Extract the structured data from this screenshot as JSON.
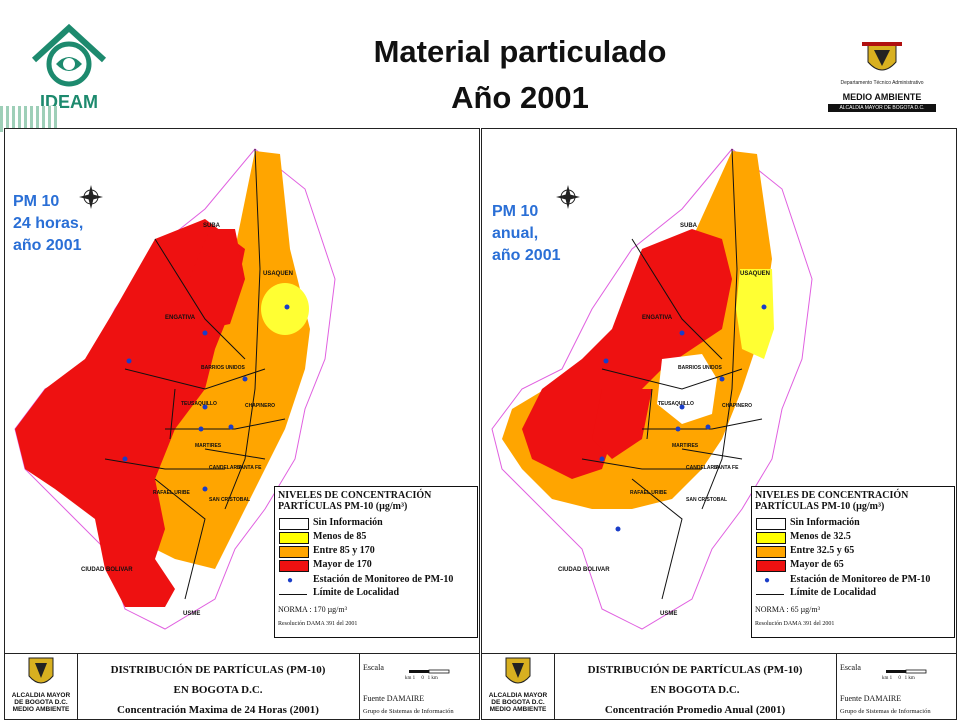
{
  "header": {
    "title_line1": "Material particulado",
    "title_line2": "Año 2001",
    "ideam_logo_text": "IDEAM",
    "ma_logo": {
      "department": "Departamento Técnico Administrativo",
      "name": "MEDIO AMBIENTE",
      "bar": "ALCALDIA MAYOR DE BOGOTA D.C."
    }
  },
  "maps": [
    {
      "label_lines": [
        "PM 10",
        "24 horas,",
        "año 2001"
      ],
      "legend": {
        "title_line1": "NIVELES DE CONCENTRACIÓN",
        "title_line2": "PARTÍCULAS PM-10 (µg/m³)",
        "items": [
          {
            "label": "Sin Información",
            "color": "#ffffff"
          },
          {
            "label": "Menos de 85",
            "color": "#ffff00"
          },
          {
            "label": "Entre 85 y 170",
            "color": "#ffa500"
          },
          {
            "label": "Mayor de 170",
            "color": "#ff0000"
          }
        ],
        "station": "Estación de Monitoreo de PM-10",
        "boundary": "Límite de Localidad",
        "norma": "NORMA : 170 µg/m³",
        "resolution": "Resolución DAMA 391 del 2001"
      },
      "footer": {
        "logo_lines": [
          "ALCALDIA MAYOR",
          "DE BOGOTA D.C.",
          "MEDIO AMBIENTE"
        ],
        "title1": "DISTRIBUCIÓN DE PARTÍCULAS (PM-10)",
        "title2": "EN BOGOTA D.C.",
        "title3": "Concentración Maxima de 24 Horas (2001)",
        "escala": "Escala",
        "scale_text": "km 1     0   1 km",
        "fuente": "Fuente DAMAIRE",
        "grupo": "Grupo de Sistemas de Información"
      }
    },
    {
      "label_lines": [
        "PM 10",
        "anual,",
        "año 2001"
      ],
      "legend": {
        "title_line1": "NIVELES DE CONCENTRACIÓN",
        "title_line2": "PARTÍCULAS PM-10 (µg/m³)",
        "items": [
          {
            "label": "Sin Información",
            "color": "#ffffff"
          },
          {
            "label": "Menos de 32.5",
            "color": "#ffff00"
          },
          {
            "label": "Entre 32.5 y 65",
            "color": "#ffa500"
          },
          {
            "label": "Mayor de 65",
            "color": "#ff0000"
          }
        ],
        "station": "Estación de Monitoreo de PM-10",
        "boundary": "Límite de Localidad",
        "norma": "NORMA : 65 µg/m³",
        "resolution": "Resolución DAMA 391 del 2001"
      },
      "footer": {
        "logo_lines": [
          "ALCALDIA MAYOR",
          "DE BOGOTA D.C.",
          "MEDIO AMBIENTE"
        ],
        "title1": "DISTRIBUCIÓN DE PARTÍCULAS (PM-10)",
        "title2": "EN BOGOTA D.C.",
        "title3": "Concentración Promedio Anual (2001)",
        "escala": "Escala",
        "scale_text": "km 1     0   1 km",
        "fuente": "Fuente DAMAIRE",
        "grupo": "Grupo de Sistemas de Información"
      }
    }
  ],
  "place_names": [
    "SUBA",
    "USAQUEN",
    "ENGATIVA",
    "BARRIOS UNIDOS",
    "CHAPINERO",
    "TEUSAQUILLO",
    "FONTIBON",
    "PUENTE ARANDA",
    "MARTIRES",
    "SANTA FE",
    "CANDELARIA",
    "RAFAEL URIBE",
    "SAN CRISTOBAL",
    "CIUDAD BOLIVAR",
    "USME",
    "KENNEDY",
    "TUNJUELITO",
    "BOSA"
  ]
}
